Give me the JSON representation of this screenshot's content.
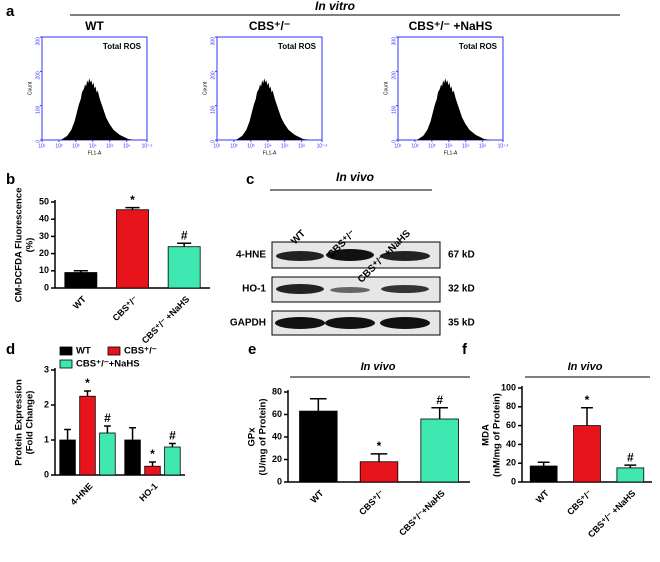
{
  "figure_a": {
    "panel": "a",
    "title": "In vitro"
  },
  "chart_data": [
    {
      "type": "flow",
      "panel": "a",
      "title": "WT",
      "label": "Total ROS",
      "ylabel": "Count",
      "xlabel": "FL1-A",
      "ylim": [
        0,
        300
      ],
      "yticks": [
        0,
        100,
        200,
        300
      ],
      "xlim": [
        1,
        7.2
      ],
      "xticks": [
        {
          "value": 1,
          "label": "10¹"
        },
        {
          "value": 2,
          "label": "10²"
        },
        {
          "value": 3,
          "label": "10³"
        },
        {
          "value": 4,
          "label": "10⁴"
        },
        {
          "value": 5,
          "label": "10⁵"
        },
        {
          "value": 6,
          "label": "10⁶"
        },
        {
          "value": 7.2,
          "label": "10⁷·²"
        }
      ],
      "color": "#3333ff"
    },
    {
      "type": "flow",
      "title": "CBS⁺/⁻",
      "label": "Total ROS",
      "ylabel": "Count",
      "xlabel": "FL1-A",
      "ylim": [
        0,
        300
      ],
      "yticks": [
        0,
        100,
        200,
        300
      ],
      "xlim": [
        1,
        7.2
      ],
      "xticks": [
        {
          "value": 1,
          "label": "10¹"
        },
        {
          "value": 2,
          "label": "10²"
        },
        {
          "value": 3,
          "label": "10³"
        },
        {
          "value": 4,
          "label": "10⁴"
        },
        {
          "value": 5,
          "label": "10⁵"
        },
        {
          "value": 6,
          "label": "10⁶"
        },
        {
          "value": 7.2,
          "label": "10⁷·²"
        }
      ],
      "color": "#3333ff"
    },
    {
      "type": "flow",
      "title": "CBS⁺/⁻ +NaHS",
      "label": "Total ROS",
      "ylabel": "Count",
      "xlabel": "FL1-A",
      "ylim": [
        0,
        300
      ],
      "yticks": [
        0,
        100,
        200,
        300
      ],
      "xlim": [
        1,
        7.2
      ],
      "xticks": [
        {
          "value": 1,
          "label": "10¹"
        },
        {
          "value": 2,
          "label": "10²"
        },
        {
          "value": 3,
          "label": "10³"
        },
        {
          "value": 4,
          "label": "10⁴"
        },
        {
          "value": 5,
          "label": "10⁵"
        },
        {
          "value": 6,
          "label": "10⁶"
        },
        {
          "value": 7.2,
          "label": "10⁷·²"
        }
      ],
      "color": "#3333ff"
    },
    {
      "type": "bar",
      "panel": "b",
      "ylabel": [
        "CM-DCFDA Fluorescence",
        "(%)"
      ],
      "categories": [
        "WT",
        "CBS⁺/⁻",
        "CBS⁺/⁻ +NaHS"
      ],
      "values": [
        9,
        45.5,
        24
      ],
      "errors": [
        1,
        1.2,
        2
      ],
      "markers": [
        null,
        "*",
        "#"
      ],
      "colors": [
        "#000000",
        "#e8141b",
        "#3ee8b0"
      ],
      "ylim": [
        0,
        50
      ],
      "yticks": [
        0,
        10,
        20,
        30,
        40,
        50
      ]
    },
    {
      "type": "grouped",
      "panel": "d",
      "ylabel": [
        "Protein Expression",
        "(Fold Change)"
      ],
      "categories": [
        "4-HNE",
        "HO-1"
      ],
      "series": [
        {
          "name": "WT",
          "color": "#000000",
          "values": [
            1.0,
            1.0
          ],
          "errors": [
            0.3,
            0.35
          ]
        },
        {
          "name": "CBS⁺/⁻",
          "color": "#e8141b",
          "values": [
            2.25,
            0.25
          ],
          "errors": [
            0.15,
            0.12
          ],
          "markers": [
            "*",
            "*"
          ]
        },
        {
          "name": "CBS⁺/⁻+NaHS",
          "color": "#3ee8b0",
          "values": [
            1.2,
            0.8
          ],
          "errors": [
            0.2,
            0.1
          ],
          "markers": [
            "#",
            "#"
          ]
        }
      ],
      "ylim": [
        0,
        3
      ],
      "yticks": [
        0,
        1,
        2,
        3
      ],
      "legend": "top"
    },
    {
      "type": "bar",
      "panel": "e",
      "title": "In vivo",
      "ylabel": [
        "GPx",
        "(U/mg of Protein)"
      ],
      "categories": [
        "WT",
        "CBS⁺/⁻",
        "CBS⁺/⁻+NaHS"
      ],
      "values": [
        63,
        18,
        56
      ],
      "errors": [
        11,
        7,
        10
      ],
      "markers": [
        null,
        "*",
        "#"
      ],
      "colors": [
        "#000000",
        "#e8141b",
        "#3ee8b0"
      ],
      "ylim": [
        0,
        80
      ],
      "yticks": [
        0,
        20,
        40,
        60,
        80
      ]
    },
    {
      "type": "bar",
      "panel": "f",
      "title": "In vivo",
      "ylabel": [
        "MDA",
        "(nM/mg of Protein)"
      ],
      "categories": [
        "WT",
        "CBS⁺/⁻",
        "CBS⁺/⁻ +NaHS"
      ],
      "values": [
        17,
        60,
        15
      ],
      "errors": [
        4,
        19,
        3
      ],
      "markers": [
        null,
        "*",
        "#"
      ],
      "colors": [
        "#000000",
        "#e8141b",
        "#3ee8b0"
      ],
      "ylim": [
        0,
        100
      ],
      "yticks": [
        0,
        20,
        40,
        60,
        80,
        100
      ]
    }
  ],
  "blot": {
    "panel": "c",
    "title": "In vivo",
    "lanes": [
      "WT",
      "CBS⁺/⁻",
      "CBS⁺/⁻ +NaHS"
    ],
    "rows": [
      {
        "label": "4-HNE",
        "size": "67 kD"
      },
      {
        "label": "HO-1",
        "size": "32 kD"
      },
      {
        "label": "GAPDH",
        "size": "35 kD"
      }
    ]
  }
}
